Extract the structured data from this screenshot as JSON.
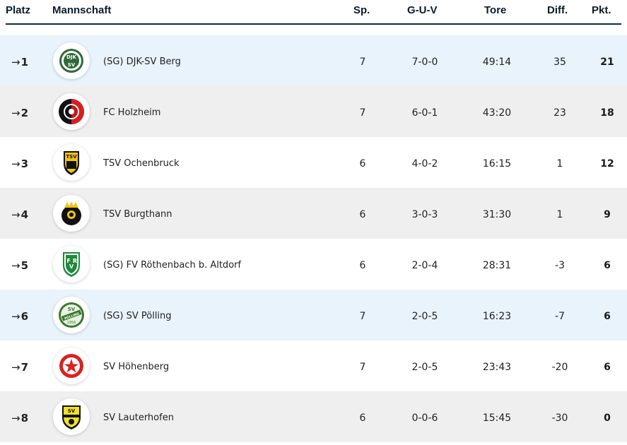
{
  "columns": {
    "platz": "Platz",
    "mannschaft": "Mannschaft",
    "sp": "Sp.",
    "guv": "G-U-V",
    "tore": "Tore",
    "diff": "Diff.",
    "pkt": "Pkt."
  },
  "rows": [
    {
      "arrow": "→",
      "place": "1",
      "team": "(SG) DJK-SV Berg",
      "logo": "djk-sv-berg-crest-icon",
      "sp": "7",
      "guv": "7-0-0",
      "tore": "49:14",
      "diff": "35",
      "pkt": "21"
    },
    {
      "arrow": "→",
      "place": "2",
      "team": "FC Holzheim",
      "logo": "fc-holzheim-crest-icon",
      "sp": "7",
      "guv": "6-0-1",
      "tore": "43:20",
      "diff": "23",
      "pkt": "18"
    },
    {
      "arrow": "→",
      "place": "3",
      "team": "TSV Ochenbruck",
      "logo": "tsv-ochenbruck-crest-icon",
      "sp": "6",
      "guv": "4-0-2",
      "tore": "16:15",
      "diff": "1",
      "pkt": "12"
    },
    {
      "arrow": "→",
      "place": "4",
      "team": "TSV Burgthann",
      "logo": "tsv-burgthann-crest-icon",
      "sp": "6",
      "guv": "3-0-3",
      "tore": "31:30",
      "diff": "1",
      "pkt": "9"
    },
    {
      "arrow": "→",
      "place": "5",
      "team": "(SG) FV Röthenbach b. Altdorf",
      "logo": "fv-roethenbach-crest-icon",
      "sp": "6",
      "guv": "2-0-4",
      "tore": "28:31",
      "diff": "-3",
      "pkt": "6"
    },
    {
      "arrow": "→",
      "place": "6",
      "team": "(SG) SV Pölling",
      "logo": "sv-poelling-crest-icon",
      "sp": "7",
      "guv": "2-0-5",
      "tore": "16:23",
      "diff": "-7",
      "pkt": "6"
    },
    {
      "arrow": "→",
      "place": "7",
      "team": "SV Höhenberg",
      "logo": "sv-hoehenberg-crest-icon",
      "sp": "7",
      "guv": "2-0-5",
      "tore": "23:43",
      "diff": "-20",
      "pkt": "6"
    },
    {
      "arrow": "→",
      "place": "8",
      "team": "SV Lauterhofen",
      "logo": "sv-lauterhofen-crest-icon",
      "sp": "6",
      "guv": "0-0-6",
      "tore": "15:45",
      "diff": "-30",
      "pkt": "0"
    }
  ],
  "logo_text": {
    "row1_top": "DJK",
    "row1_bottom": "SV",
    "row3": "TSV",
    "row5_left": "F",
    "row5_mid": "V",
    "row5_right": "R",
    "row6_top": "SV",
    "row6_mid": "PÖLLING",
    "row6_year": "1956",
    "row8": "SV"
  },
  "colors": {
    "header_rule": "#0b2d4a",
    "row_highlight": "#e8f3fc",
    "row_gray": "#efefef"
  }
}
